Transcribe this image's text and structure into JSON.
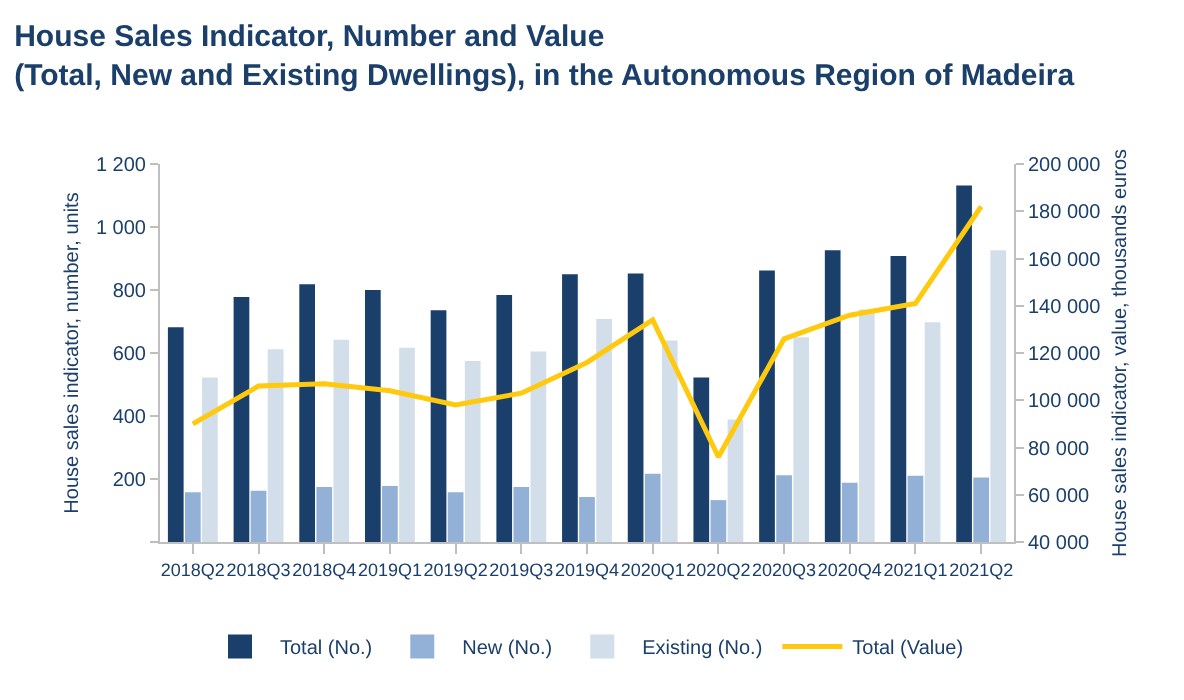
{
  "chart_data": {
    "type": "bar",
    "title": "House Sales Indicator, Number and Value\n(Total, New and Existing Dwellings), in the Autonomous Region of Madeira",
    "categories": [
      "2018Q2",
      "2018Q3",
      "2018Q4",
      "2019Q1",
      "2019Q2",
      "2019Q3",
      "2019Q4",
      "2020Q1",
      "2020Q2",
      "2020Q3",
      "2020Q4",
      "2021Q1",
      "2021Q2"
    ],
    "ylabel": "House sales indicator, number, units",
    "y2label": "House sales indicator, value, thousands euros",
    "series": [
      {
        "name": "Total (No.)",
        "color": "#1b3f6b",
        "values": [
          682,
          778,
          818,
          800,
          736,
          784,
          850,
          852,
          522,
          862,
          926,
          908,
          1132
        ]
      },
      {
        "name": "New (No.)",
        "color": "#93b1d7",
        "values": [
          158,
          163,
          175,
          178,
          158,
          175,
          143,
          217,
          133,
          212,
          188,
          210,
          205
        ]
      },
      {
        "name": "Existing (No.)",
        "color": "#d3deeb",
        "values": [
          522,
          612,
          642,
          617,
          575,
          605,
          708,
          640,
          389,
          650,
          738,
          698,
          926
        ]
      },
      {
        "name": "Total (Value)",
        "color": "#ffc90e",
        "type": "line",
        "axis": "y2",
        "marker": "none",
        "values": [
          90000,
          106000,
          107000,
          104000,
          98000,
          103000,
          116000,
          134000,
          76000,
          126000,
          136000,
          141000,
          182000
        ]
      }
    ],
    "ylim": [
      0,
      1200
    ],
    "yticks": [
      {
        "value": 0,
        "label": null
      },
      {
        "value": 200,
        "label": "200"
      },
      {
        "value": 400,
        "label": "400"
      },
      {
        "value": 600,
        "label": "600"
      },
      {
        "value": 800,
        "label": "800"
      },
      {
        "value": 1000,
        "label": "1 000"
      },
      {
        "value": 1200,
        "label": "1 200"
      }
    ],
    "y2lim": [
      40000,
      200000
    ],
    "y2ticks": [
      {
        "value": 40000,
        "label": "40 000"
      },
      {
        "value": 60000,
        "label": "60 000"
      },
      {
        "value": 80000,
        "label": "80 000"
      },
      {
        "value": 100000,
        "label": "100 000"
      },
      {
        "value": 120000,
        "label": "120 000"
      },
      {
        "value": 140000,
        "label": "140 000"
      },
      {
        "value": 160000,
        "label": "160 000"
      },
      {
        "value": 180000,
        "label": "180 000"
      },
      {
        "value": 200000,
        "label": "200 000"
      }
    ],
    "grid": false,
    "legend": "bottom"
  }
}
